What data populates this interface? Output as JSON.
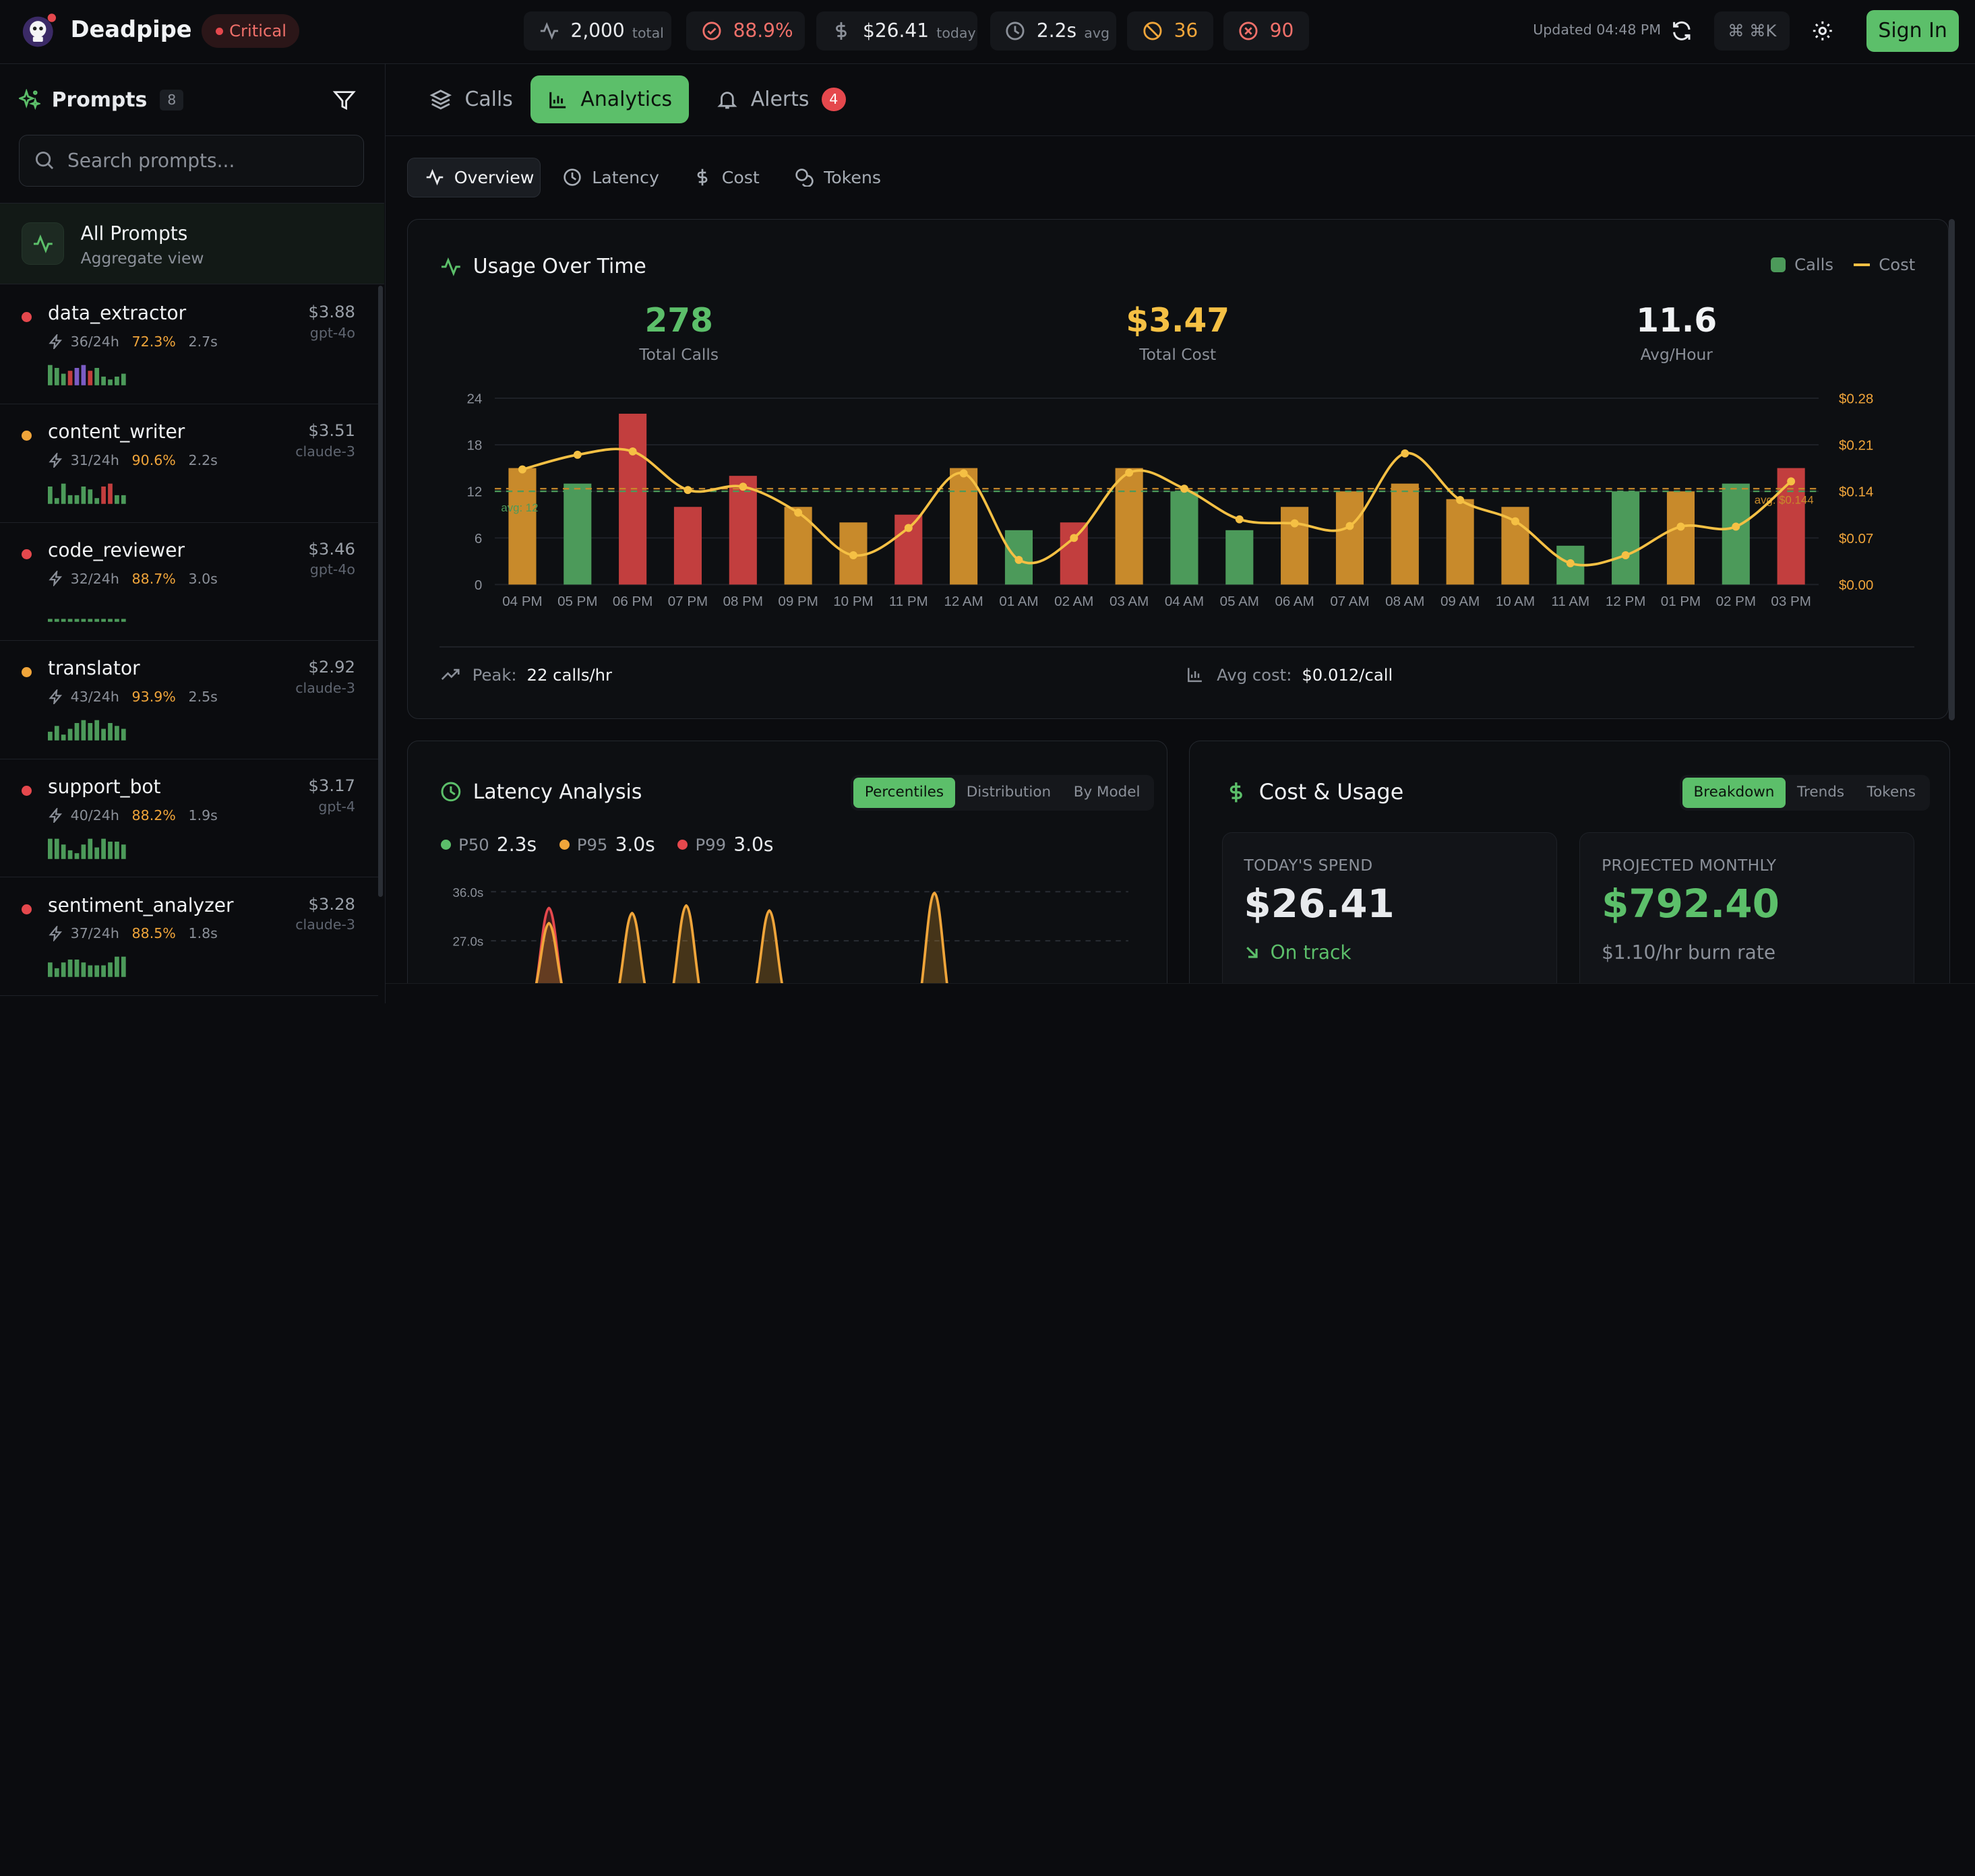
{
  "app": {
    "name": "Deadpipe",
    "status": "Critical"
  },
  "stats": [
    {
      "value": "2,000",
      "sub": "total"
    },
    {
      "value": "88.9%",
      "sub": ""
    },
    {
      "value": "$26.41",
      "sub": "today"
    },
    {
      "value": "2.2s",
      "sub": "avg"
    },
    {
      "value": "36",
      "sub": ""
    },
    {
      "value": "90",
      "sub": ""
    }
  ],
  "header": {
    "updated": "Updated 04:48 PM",
    "shortcut": "⌘ ⌘K",
    "signin": "Sign In"
  },
  "sidebar": {
    "title": "Prompts",
    "count": "8",
    "search_placeholder": "Search prompts...",
    "all": {
      "title": "All Prompts",
      "subtitle": "Aggregate view"
    },
    "items": [
      {
        "name": "data_extractor",
        "price": "$3.88",
        "model": "gpt-4o",
        "calls": "36/24h",
        "success": "72.3%",
        "latency": "2.7s",
        "dot": "#e5484d",
        "spark": [
          7,
          6,
          4,
          5,
          6,
          7,
          5,
          6,
          3,
          2,
          3,
          4
        ],
        "spark_colors": [
          "g",
          "g",
          "g",
          "r",
          "p",
          "p",
          "r",
          "g",
          "g",
          "g",
          "g",
          "g"
        ]
      },
      {
        "name": "content_writer",
        "price": "$3.51",
        "model": "claude-3",
        "calls": "31/24h",
        "success": "90.6%",
        "latency": "2.2s",
        "dot": "#f0a53a",
        "spark": [
          6,
          2,
          7,
          3,
          3,
          6,
          5,
          2,
          6,
          7,
          3,
          3
        ],
        "spark_colors": [
          "g",
          "g",
          "g",
          "g",
          "g",
          "g",
          "g",
          "g",
          "r",
          "r",
          "g",
          "g"
        ]
      },
      {
        "name": "code_reviewer",
        "price": "$3.46",
        "model": "gpt-4o",
        "calls": "32/24h",
        "success": "88.7%",
        "latency": "3.0s",
        "dot": "#e5484d",
        "spark": [
          1,
          1,
          1,
          1,
          1,
          1,
          1,
          1,
          1,
          1,
          1,
          1
        ],
        "spark_colors": [
          "g",
          "g",
          "g",
          "g",
          "g",
          "g",
          "g",
          "g",
          "g",
          "g",
          "g",
          "g"
        ]
      },
      {
        "name": "translator",
        "price": "$2.92",
        "model": "claude-3",
        "calls": "43/24h",
        "success": "93.9%",
        "latency": "2.5s",
        "dot": "#f0a53a",
        "spark": [
          3,
          5,
          2,
          4,
          6,
          7,
          6,
          7,
          4,
          6,
          5,
          4
        ],
        "spark_colors": [
          "g",
          "g",
          "g",
          "g",
          "g",
          "g",
          "g",
          "g",
          "g",
          "g",
          "g",
          "g"
        ]
      },
      {
        "name": "support_bot",
        "price": "$3.17",
        "model": "gpt-4",
        "calls": "40/24h",
        "success": "88.2%",
        "latency": "1.9s",
        "dot": "#e5484d",
        "spark": [
          7,
          7,
          5,
          3,
          2,
          5,
          7,
          4,
          7,
          6,
          6,
          5
        ],
        "spark_colors": [
          "g",
          "g",
          "g",
          "g",
          "g",
          "g",
          "g",
          "g",
          "g",
          "g",
          "g",
          "g"
        ]
      },
      {
        "name": "sentiment_analyzer",
        "price": "$3.28",
        "model": "claude-3",
        "calls": "37/24h",
        "success": "88.5%",
        "latency": "1.8s",
        "dot": "#e5484d",
        "spark": [
          5,
          3,
          5,
          6,
          6,
          5,
          4,
          4,
          4,
          5,
          7,
          7
        ],
        "spark_colors": [
          "g",
          "g",
          "g",
          "g",
          "g",
          "g",
          "g",
          "g",
          "g",
          "g",
          "g",
          "g"
        ]
      }
    ]
  },
  "tabs": [
    {
      "label": "Calls"
    },
    {
      "label": "Analytics"
    },
    {
      "label": "Alerts",
      "badge": "4"
    }
  ],
  "subtabs": [
    "Overview",
    "Latency",
    "Cost",
    "Tokens"
  ],
  "usage": {
    "title": "Usage Over Time",
    "legend": {
      "calls": "Calls",
      "cost": "Cost"
    },
    "kpis": [
      {
        "value": "278",
        "label": "Total Calls",
        "color": "#5cbf6a"
      },
      {
        "value": "$3.47",
        "label": "Total Cost",
        "color": "#f5c044"
      },
      {
        "value": "11.6",
        "label": "Avg/Hour",
        "color": "#f1f3f5"
      }
    ],
    "peak_label": "Peak:",
    "peak_value": "22 calls/hr",
    "avgcost_label": "Avg cost:",
    "avgcost_value": "$0.012/call"
  },
  "chart_data": {
    "type": "bar",
    "categories": [
      "04 PM",
      "05 PM",
      "06 PM",
      "07 PM",
      "08 PM",
      "09 PM",
      "10 PM",
      "11 PM",
      "12 AM",
      "01 AM",
      "02 AM",
      "03 AM",
      "04 AM",
      "05 AM",
      "06 AM",
      "07 AM",
      "08 AM",
      "09 AM",
      "10 AM",
      "11 AM",
      "12 PM",
      "01 PM",
      "02 PM",
      "03 PM"
    ],
    "series": [
      {
        "name": "Calls",
        "values": [
          15,
          13,
          22,
          10,
          14,
          10,
          8,
          9,
          15,
          7,
          8,
          15,
          12,
          7,
          10,
          12,
          13,
          11,
          10,
          5,
          12,
          12,
          13,
          15
        ]
      },
      {
        "name": "Cost",
        "values": [
          0.173,
          0.195,
          0.2,
          0.142,
          0.147,
          0.108,
          0.044,
          0.085,
          0.167,
          0.037,
          0.07,
          0.168,
          0.144,
          0.098,
          0.092,
          0.088,
          0.197,
          0.127,
          0.095,
          0.032,
          0.044,
          0.087,
          0.087,
          0.155
        ]
      }
    ],
    "bar_colors": [
      "#c88a2b",
      "#4c9a5a",
      "#c23e3e",
      "#c23e3e",
      "#c23e3e",
      "#c88a2b",
      "#c88a2b",
      "#c23e3e",
      "#c88a2b",
      "#4c9a5a",
      "#c23e3e",
      "#c88a2b",
      "#4c9a5a",
      "#4c9a5a",
      "#c88a2b",
      "#c88a2b",
      "#c88a2b",
      "#c88a2b",
      "#c88a2b",
      "#4c9a5a",
      "#4c9a5a",
      "#c88a2b",
      "#4c9a5a",
      "#c23e3e"
    ],
    "y_ticks": [
      "0",
      "6",
      "12",
      "18",
      "24"
    ],
    "y2_ticks": [
      "$0.00",
      "$0.07",
      "$0.14",
      "$0.21",
      "$0.28"
    ],
    "ylim": [
      0,
      24
    ],
    "y2lim": [
      0,
      0.28
    ],
    "avg_calls": 12,
    "avg_calls_label": "avg: 12",
    "avg_cost": 0.144,
    "avg_cost_label": "avg: $0.144",
    "grid": true,
    "legend": "top-right"
  },
  "latency": {
    "title": "Latency Analysis",
    "segments": [
      "Percentiles",
      "Distribution",
      "By Model"
    ],
    "p50_label": "P50",
    "p50": "2.3s",
    "p95_label": "P95",
    "p95": "3.0s",
    "p99_label": "P99",
    "p99": "3.0s",
    "y_ticks": [
      "36.0s",
      "27.0s"
    ]
  },
  "cost": {
    "title": "Cost & Usage",
    "segments": [
      "Breakdown",
      "Trends",
      "Tokens"
    ],
    "today_label": "TODAY'S SPEND",
    "today_value": "$26.41",
    "today_status": "On track",
    "proj_label": "PROJECTED MONTHLY",
    "proj_value": "$792.40",
    "proj_sub": "$1.10/hr burn rate"
  }
}
